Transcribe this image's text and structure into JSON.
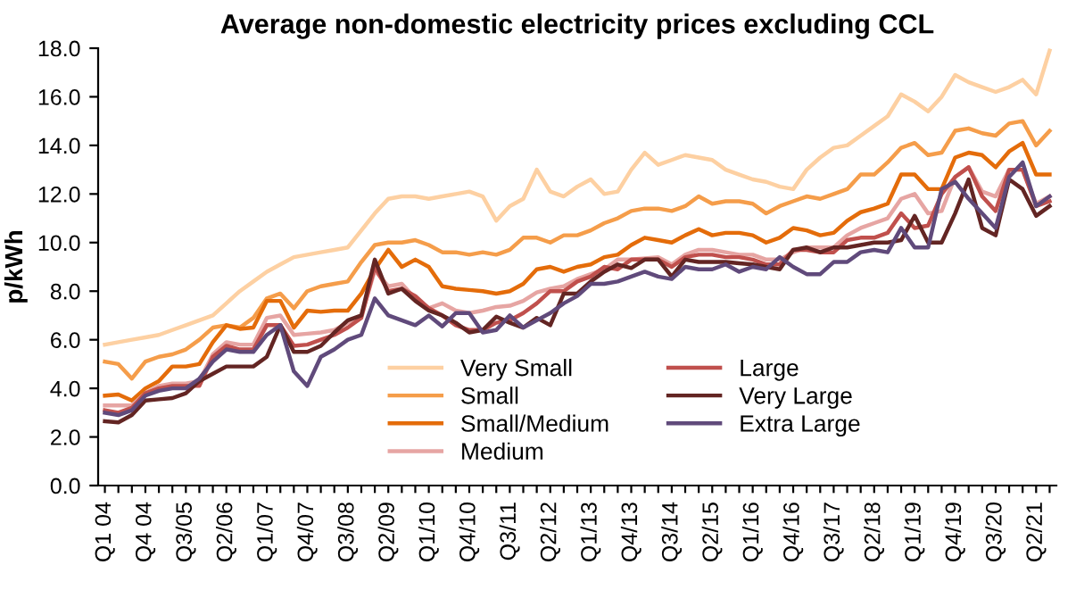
{
  "chart_data": {
    "type": "line",
    "title": "Average non-domestic electricity prices excluding CCL",
    "ylabel": "p/kWh",
    "categories": [
      "Q1 04",
      null,
      null,
      "Q4 04",
      null,
      null,
      "Q3/05",
      null,
      null,
      "Q2/06",
      null,
      null,
      "Q1/07",
      null,
      null,
      "Q4/07",
      null,
      null,
      "Q3/08",
      null,
      null,
      "Q2/09",
      null,
      null,
      "Q1/10",
      null,
      null,
      "Q4/10",
      null,
      null,
      "Q3/11",
      null,
      null,
      "Q2/12",
      null,
      null,
      "Q1/13",
      null,
      null,
      "Q4/13",
      null,
      null,
      "Q3/14",
      null,
      null,
      "Q2/15",
      null,
      null,
      "Q1/16",
      null,
      null,
      "Q4/16",
      null,
      null,
      "Q3/17",
      null,
      null,
      "Q2/18",
      null,
      null,
      "Q1/19",
      null,
      null,
      "Q4/19",
      null,
      null,
      "Q3/20",
      null,
      null,
      "Q2/21",
      null
    ],
    "series": [
      {
        "name": "Very Small",
        "color": "#fdd0a2",
        "values": [
          5.8,
          5.9,
          6.0,
          6.1,
          6.2,
          6.4,
          6.6,
          6.8,
          7.0,
          7.5,
          8.0,
          8.4,
          8.8,
          9.1,
          9.4,
          9.5,
          9.6,
          9.7,
          9.8,
          10.5,
          11.2,
          11.8,
          11.9,
          11.9,
          11.8,
          11.9,
          12.0,
          12.1,
          11.9,
          10.9,
          11.5,
          11.8,
          13.0,
          12.1,
          11.9,
          12.3,
          12.6,
          12.0,
          12.1,
          13.0,
          13.7,
          13.2,
          13.4,
          13.6,
          13.5,
          13.4,
          13.0,
          12.8,
          12.6,
          12.5,
          12.3,
          12.2,
          13.0,
          13.5,
          13.9,
          14.0,
          14.4,
          14.8,
          15.2,
          16.1,
          15.8,
          15.4,
          16.0,
          16.9,
          16.6,
          16.4,
          16.2,
          16.4,
          16.7,
          16.1,
          17.9
        ]
      },
      {
        "name": "Small",
        "color": "#f59d4a",
        "values": [
          5.1,
          5.0,
          4.4,
          5.1,
          5.3,
          5.4,
          5.6,
          6.0,
          6.5,
          6.6,
          6.5,
          6.9,
          7.7,
          7.9,
          7.3,
          8.0,
          8.2,
          8.3,
          8.4,
          9.2,
          9.9,
          10.0,
          10.0,
          10.1,
          9.9,
          9.6,
          9.6,
          9.5,
          9.6,
          9.5,
          9.7,
          10.2,
          10.2,
          10.0,
          10.3,
          10.3,
          10.5,
          10.8,
          11.0,
          11.3,
          11.4,
          11.4,
          11.3,
          11.5,
          11.9,
          11.6,
          11.7,
          11.7,
          11.6,
          11.2,
          11.5,
          11.7,
          11.9,
          11.8,
          12.0,
          12.2,
          12.8,
          12.8,
          13.3,
          13.9,
          14.1,
          13.6,
          13.7,
          14.6,
          14.7,
          14.5,
          14.4,
          14.9,
          15.0,
          14.0,
          14.6
        ]
      },
      {
        "name": "Small/Medium",
        "color": "#e46c0a",
        "values": [
          3.7,
          3.75,
          3.5,
          4.0,
          4.3,
          4.9,
          4.9,
          5.0,
          5.9,
          6.6,
          6.45,
          6.5,
          7.6,
          7.6,
          6.5,
          7.2,
          7.15,
          7.2,
          7.2,
          7.9,
          8.9,
          9.7,
          9.0,
          9.3,
          9.0,
          8.2,
          8.1,
          8.05,
          8.0,
          7.9,
          8.0,
          8.3,
          8.9,
          9.0,
          8.8,
          9.0,
          9.1,
          9.4,
          9.5,
          9.9,
          10.2,
          10.1,
          10.0,
          10.3,
          10.55,
          10.3,
          10.4,
          10.4,
          10.3,
          10.0,
          10.2,
          10.6,
          10.5,
          10.3,
          10.4,
          10.9,
          11.25,
          11.4,
          11.6,
          12.8,
          12.8,
          12.2,
          12.2,
          13.5,
          13.7,
          13.6,
          13.1,
          13.75,
          14.1,
          12.8,
          12.8
        ]
      },
      {
        "name": "Medium",
        "color": "#e6a5a3",
        "values": [
          3.3,
          3.3,
          3.3,
          3.8,
          4.1,
          4.2,
          4.2,
          4.3,
          5.4,
          5.9,
          5.8,
          5.8,
          6.9,
          7.0,
          6.2,
          6.25,
          6.3,
          6.4,
          6.7,
          7.0,
          8.85,
          8.2,
          8.3,
          7.7,
          7.3,
          7.5,
          7.2,
          7.1,
          7.2,
          7.35,
          7.4,
          7.6,
          7.95,
          8.1,
          8.2,
          8.5,
          8.7,
          8.9,
          9.3,
          9.3,
          9.35,
          9.4,
          9.1,
          9.5,
          9.7,
          9.7,
          9.6,
          9.5,
          9.5,
          9.3,
          9.3,
          9.6,
          9.8,
          9.8,
          9.8,
          10.3,
          10.6,
          10.8,
          11.0,
          11.8,
          12.0,
          11.2,
          11.3,
          12.7,
          13.1,
          12.1,
          11.9,
          13.0,
          13.0,
          11.6,
          11.9
        ]
      },
      {
        "name": "Large",
        "color": "#c0504d",
        "values": [
          3.1,
          3.0,
          3.2,
          3.8,
          4.0,
          4.1,
          4.1,
          4.1,
          5.3,
          5.75,
          5.6,
          5.6,
          6.6,
          6.6,
          5.75,
          5.8,
          6.0,
          6.2,
          6.5,
          6.9,
          9.0,
          8.0,
          8.1,
          7.8,
          7.3,
          7.0,
          6.6,
          6.4,
          6.4,
          6.7,
          6.8,
          7.1,
          7.5,
          8.0,
          8.0,
          8.4,
          8.6,
          9.0,
          8.9,
          9.3,
          9.3,
          9.3,
          9.0,
          9.4,
          9.5,
          9.5,
          9.4,
          9.4,
          9.3,
          9.1,
          9.1,
          9.7,
          9.7,
          9.6,
          9.6,
          10.1,
          10.2,
          10.2,
          10.4,
          11.2,
          10.6,
          10.7,
          12.0,
          12.7,
          13.1,
          11.9,
          11.3,
          13.0,
          13.0,
          11.5,
          11.7
        ]
      },
      {
        "name": "Very Large",
        "color": "#632523",
        "values": [
          2.65,
          2.6,
          2.9,
          3.5,
          3.55,
          3.6,
          3.8,
          4.3,
          4.6,
          4.9,
          4.9,
          4.9,
          5.3,
          6.6,
          5.5,
          5.5,
          5.75,
          6.3,
          6.8,
          7.0,
          9.3,
          7.9,
          8.1,
          7.6,
          7.2,
          7.0,
          6.7,
          6.3,
          6.4,
          6.95,
          6.7,
          6.5,
          6.9,
          6.6,
          7.9,
          7.9,
          8.4,
          8.8,
          9.1,
          8.95,
          9.3,
          9.3,
          8.6,
          9.3,
          9.2,
          9.2,
          9.2,
          9.15,
          9.1,
          9.0,
          8.9,
          9.7,
          9.8,
          9.6,
          9.8,
          9.8,
          9.9,
          10.0,
          10.0,
          10.1,
          11.1,
          10.0,
          10.0,
          11.2,
          12.6,
          10.6,
          10.3,
          12.6,
          12.2,
          11.1,
          11.5
        ]
      },
      {
        "name": "Extra Large",
        "color": "#604a7b",
        "values": [
          3.0,
          2.9,
          3.1,
          3.7,
          3.9,
          4.0,
          4.0,
          4.4,
          5.1,
          5.6,
          5.5,
          5.5,
          6.2,
          6.6,
          4.7,
          4.1,
          5.3,
          5.6,
          6.0,
          6.2,
          7.7,
          7.0,
          6.8,
          6.6,
          7.0,
          6.55,
          7.1,
          7.1,
          6.3,
          6.4,
          7.0,
          6.5,
          6.8,
          7.1,
          7.5,
          7.8,
          8.3,
          8.3,
          8.4,
          8.6,
          8.8,
          8.6,
          8.5,
          9.0,
          8.9,
          8.9,
          9.1,
          8.8,
          9.0,
          8.9,
          9.4,
          9.0,
          8.7,
          8.7,
          9.2,
          9.2,
          9.6,
          9.7,
          9.6,
          10.6,
          9.8,
          9.8,
          12.2,
          12.5,
          11.8,
          11.2,
          10.6,
          12.7,
          13.3,
          11.5,
          11.9
        ]
      }
    ],
    "ylim": [
      0,
      18
    ],
    "yticks": [
      {
        "value": 0,
        "label": "0.0"
      },
      {
        "value": 2,
        "label": "2.0"
      },
      {
        "value": 4,
        "label": "4.0"
      },
      {
        "value": 6,
        "label": "6.0"
      },
      {
        "value": 8,
        "label": "8.0"
      },
      {
        "value": 10,
        "label": "10.0"
      },
      {
        "value": 12,
        "label": "12.0"
      },
      {
        "value": 14,
        "label": "14.0"
      },
      {
        "value": 16,
        "label": "16.0"
      },
      {
        "value": 18,
        "label": "18.0"
      }
    ],
    "grid": false,
    "legend": "bottom",
    "marker": "none",
    "line_style": "solid"
  }
}
